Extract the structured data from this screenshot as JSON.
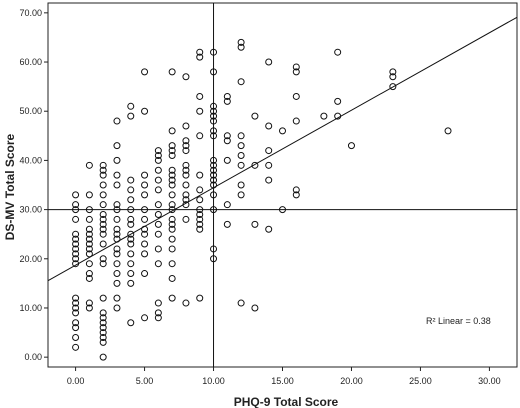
{
  "chart_data": {
    "type": "scatter",
    "xlabel": "PHQ-9 Total Score",
    "ylabel": "DS-MV Total Score",
    "xlim": [
      -2,
      32
    ],
    "ylim": [
      -2,
      72
    ],
    "x_ticks": [
      "0.00",
      "5.00",
      "10.00",
      "15.00",
      "20.00",
      "25.00",
      "30.00"
    ],
    "y_ticks": [
      "0.00",
      "10.00",
      "20.00",
      "30.00",
      "40.00",
      "50.00",
      "60.00",
      "70.00"
    ],
    "reference_lines": {
      "x": 10,
      "y": 30
    },
    "fit_line": {
      "intercept": 18.7,
      "slope": 1.575
    },
    "annotation": "R² Linear = 0.38",
    "grid": false,
    "marker": "open-circle",
    "points": [
      [
        0,
        2
      ],
      [
        0,
        4
      ],
      [
        0,
        6
      ],
      [
        0,
        7
      ],
      [
        0,
        9
      ],
      [
        0,
        10
      ],
      [
        0,
        11
      ],
      [
        0,
        12
      ],
      [
        0,
        19
      ],
      [
        0,
        20
      ],
      [
        0,
        21
      ],
      [
        0,
        22
      ],
      [
        0,
        23
      ],
      [
        0,
        24
      ],
      [
        0,
        25
      ],
      [
        0,
        28
      ],
      [
        0,
        30
      ],
      [
        0,
        31
      ],
      [
        0,
        33
      ],
      [
        1,
        10
      ],
      [
        1,
        11
      ],
      [
        1,
        16
      ],
      [
        1,
        17
      ],
      [
        1,
        19
      ],
      [
        1,
        21
      ],
      [
        1,
        22
      ],
      [
        1,
        23
      ],
      [
        1,
        24
      ],
      [
        1,
        25
      ],
      [
        1,
        26
      ],
      [
        1,
        28
      ],
      [
        1,
        30
      ],
      [
        1,
        33
      ],
      [
        1,
        39
      ],
      [
        2,
        0
      ],
      [
        2,
        3
      ],
      [
        2,
        4
      ],
      [
        2,
        5
      ],
      [
        2,
        6
      ],
      [
        2,
        7
      ],
      [
        2,
        8
      ],
      [
        2,
        9
      ],
      [
        2,
        12
      ],
      [
        2,
        19
      ],
      [
        2,
        20
      ],
      [
        2,
        23
      ],
      [
        2,
        25
      ],
      [
        2,
        26
      ],
      [
        2,
        27
      ],
      [
        2,
        28
      ],
      [
        2,
        29
      ],
      [
        2,
        31
      ],
      [
        2,
        33
      ],
      [
        2,
        35
      ],
      [
        2,
        37
      ],
      [
        2,
        38
      ],
      [
        2,
        39
      ],
      [
        3,
        10
      ],
      [
        3,
        12
      ],
      [
        3,
        15
      ],
      [
        3,
        17
      ],
      [
        3,
        19
      ],
      [
        3,
        21
      ],
      [
        3,
        22
      ],
      [
        3,
        24
      ],
      [
        3,
        25
      ],
      [
        3,
        26
      ],
      [
        3,
        28
      ],
      [
        3,
        30
      ],
      [
        3,
        31
      ],
      [
        3,
        35
      ],
      [
        3,
        37
      ],
      [
        3,
        40
      ],
      [
        3,
        43
      ],
      [
        3,
        48
      ],
      [
        4,
        7
      ],
      [
        4,
        15
      ],
      [
        4,
        17
      ],
      [
        4,
        19
      ],
      [
        4,
        21
      ],
      [
        4,
        23
      ],
      [
        4,
        24
      ],
      [
        4,
        25
      ],
      [
        4,
        27
      ],
      [
        4,
        28
      ],
      [
        4,
        30
      ],
      [
        4,
        32
      ],
      [
        4,
        34
      ],
      [
        4,
        36
      ],
      [
        4,
        49
      ],
      [
        4,
        51
      ],
      [
        5,
        8
      ],
      [
        5,
        17
      ],
      [
        5,
        21
      ],
      [
        5,
        23
      ],
      [
        5,
        25
      ],
      [
        5,
        26
      ],
      [
        5,
        28
      ],
      [
        5,
        30
      ],
      [
        5,
        33
      ],
      [
        5,
        35
      ],
      [
        5,
        37
      ],
      [
        5,
        50
      ],
      [
        5,
        58
      ],
      [
        6,
        8
      ],
      [
        6,
        9
      ],
      [
        6,
        11
      ],
      [
        6,
        19
      ],
      [
        6,
        22
      ],
      [
        6,
        25
      ],
      [
        6,
        27
      ],
      [
        6,
        29
      ],
      [
        6,
        31
      ],
      [
        6,
        34
      ],
      [
        6,
        36
      ],
      [
        6,
        38
      ],
      [
        6,
        40
      ],
      [
        6,
        41
      ],
      [
        6,
        42
      ],
      [
        7,
        12
      ],
      [
        7,
        16
      ],
      [
        7,
        19
      ],
      [
        7,
        22
      ],
      [
        7,
        24
      ],
      [
        7,
        26
      ],
      [
        7,
        27
      ],
      [
        7,
        28
      ],
      [
        7,
        30
      ],
      [
        7,
        31
      ],
      [
        7,
        33
      ],
      [
        7,
        35
      ],
      [
        7,
        36
      ],
      [
        7,
        37
      ],
      [
        7,
        38
      ],
      [
        7,
        41
      ],
      [
        7,
        42
      ],
      [
        7,
        43
      ],
      [
        7,
        46
      ],
      [
        7,
        58
      ],
      [
        8,
        11
      ],
      [
        8,
        28
      ],
      [
        8,
        31
      ],
      [
        8,
        32
      ],
      [
        8,
        33
      ],
      [
        8,
        35
      ],
      [
        8,
        37
      ],
      [
        8,
        38
      ],
      [
        8,
        39
      ],
      [
        8,
        42
      ],
      [
        8,
        43
      ],
      [
        8,
        44
      ],
      [
        8,
        47
      ],
      [
        8,
        57
      ],
      [
        9,
        12
      ],
      [
        9,
        26
      ],
      [
        9,
        27
      ],
      [
        9,
        28
      ],
      [
        9,
        29
      ],
      [
        9,
        30
      ],
      [
        9,
        32
      ],
      [
        9,
        34
      ],
      [
        9,
        37
      ],
      [
        9,
        45
      ],
      [
        9,
        50
      ],
      [
        9,
        53
      ],
      [
        9,
        61
      ],
      [
        9,
        62
      ],
      [
        10,
        20
      ],
      [
        10,
        22
      ],
      [
        10,
        30
      ],
      [
        10,
        33
      ],
      [
        10,
        35
      ],
      [
        10,
        36
      ],
      [
        10,
        37
      ],
      [
        10,
        38
      ],
      [
        10,
        39
      ],
      [
        10,
        40
      ],
      [
        10,
        45
      ],
      [
        10,
        46
      ],
      [
        10,
        48
      ],
      [
        10,
        49
      ],
      [
        10,
        50
      ],
      [
        10,
        51
      ],
      [
        10,
        58
      ],
      [
        10,
        62
      ],
      [
        11,
        27
      ],
      [
        11,
        31
      ],
      [
        11,
        40
      ],
      [
        11,
        44
      ],
      [
        11,
        45
      ],
      [
        11,
        52
      ],
      [
        11,
        53
      ],
      [
        12,
        11
      ],
      [
        12,
        33
      ],
      [
        12,
        35
      ],
      [
        12,
        39
      ],
      [
        12,
        41
      ],
      [
        12,
        43
      ],
      [
        12,
        45
      ],
      [
        12,
        56
      ],
      [
        12,
        63
      ],
      [
        12,
        64
      ],
      [
        13,
        10
      ],
      [
        13,
        27
      ],
      [
        13,
        39
      ],
      [
        13,
        49
      ],
      [
        14,
        26
      ],
      [
        14,
        36
      ],
      [
        14,
        39
      ],
      [
        14,
        42
      ],
      [
        14,
        47
      ],
      [
        14,
        60
      ],
      [
        15,
        30
      ],
      [
        15,
        46
      ],
      [
        16,
        33
      ],
      [
        16,
        34
      ],
      [
        16,
        48
      ],
      [
        16,
        53
      ],
      [
        16,
        58
      ],
      [
        16,
        59
      ],
      [
        18,
        49
      ],
      [
        19,
        49
      ],
      [
        19,
        52
      ],
      [
        19,
        62
      ],
      [
        20,
        43
      ],
      [
        23,
        55
      ],
      [
        23,
        57
      ],
      [
        23,
        58
      ],
      [
        27,
        46
      ]
    ]
  }
}
